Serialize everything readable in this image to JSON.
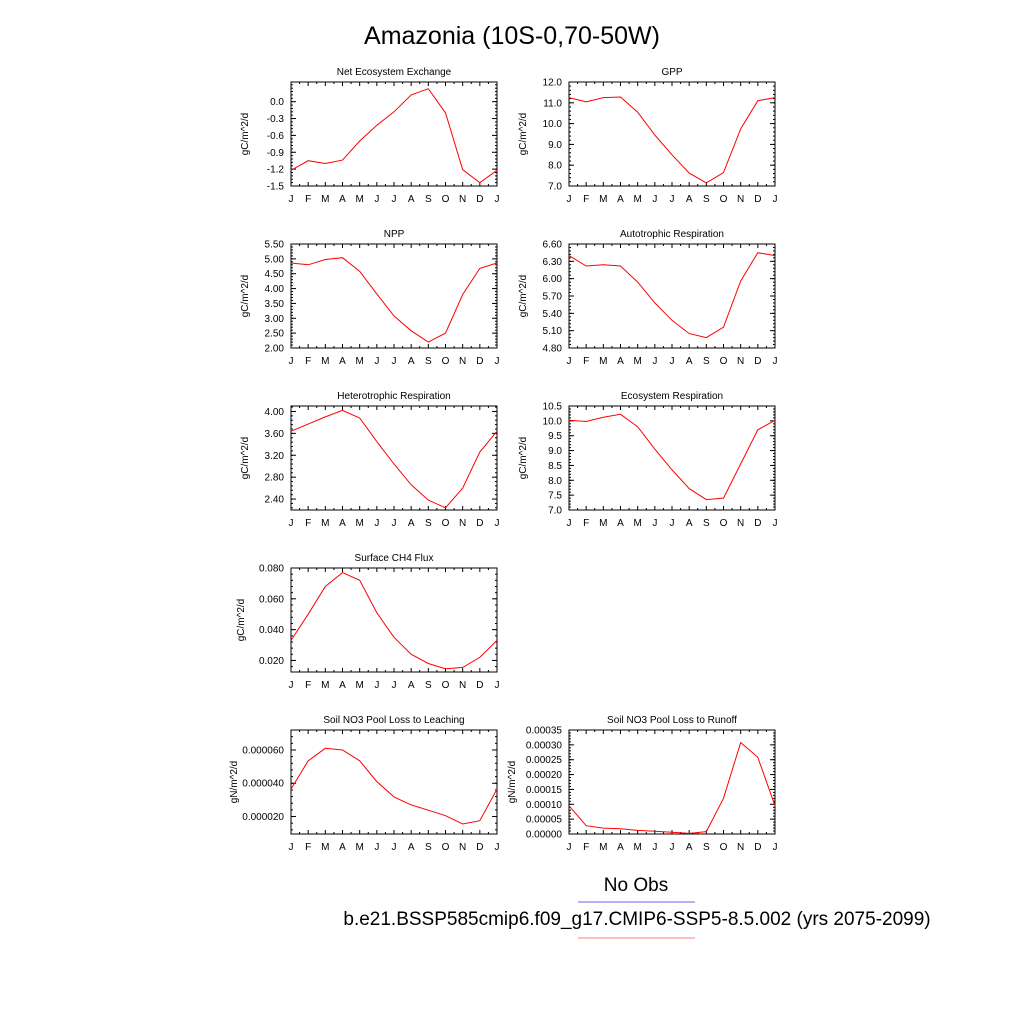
{
  "title": "Amazonia (10S-0,70-50W)",
  "legend": {
    "obs_label": "No Obs",
    "obs_color": "#6666ee",
    "model_label": "b.e21.BSSP585cmip6.f09_g17.CMIP6-SSP5-8.5.002 (yrs 2075-2099)",
    "model_color": "#ff8080"
  },
  "colors": {
    "series": "#ff0000",
    "axes": "#000000"
  },
  "months": [
    "J",
    "F",
    "M",
    "A",
    "M",
    "J",
    "J",
    "A",
    "S",
    "O",
    "N",
    "D",
    "J"
  ],
  "chart_data": [
    {
      "type": "line",
      "title": "Net Ecosystem Exchange",
      "ylabel": "gC/m^2/d",
      "ylim": [
        -1.5,
        0.35
      ],
      "yticks": [
        -1.5,
        -1.2,
        -0.9,
        -0.6,
        -0.3,
        0.0
      ],
      "ytick_labels": [
        "-1.5",
        "-1.2",
        "-0.9",
        "-0.6",
        "-0.3",
        "0.0"
      ],
      "values": [
        -1.22,
        -1.05,
        -1.1,
        -1.04,
        -0.7,
        -0.42,
        -0.18,
        0.12,
        0.23,
        -0.2,
        -1.21,
        -1.44,
        -1.22
      ]
    },
    {
      "type": "line",
      "title": "GPP",
      "ylabel": "gC/m^2/d",
      "ylim": [
        7.0,
        12.0
      ],
      "yticks": [
        7.0,
        8.0,
        9.0,
        10.0,
        11.0,
        12.0
      ],
      "ytick_labels": [
        "7.0",
        "8.0",
        "9.0",
        "10.0",
        "11.0",
        "12.0"
      ],
      "values": [
        11.25,
        11.05,
        11.25,
        11.28,
        10.55,
        9.45,
        8.5,
        7.62,
        7.15,
        7.65,
        9.75,
        11.1,
        11.25
      ]
    },
    {
      "type": "line",
      "title": "NPP",
      "ylabel": "gC/m^2/d",
      "ylim": [
        2.0,
        5.5
      ],
      "yticks": [
        2.0,
        2.5,
        3.0,
        3.5,
        4.0,
        4.5,
        5.0,
        5.5
      ],
      "ytick_labels": [
        "2.00",
        "2.50",
        "3.00",
        "3.50",
        "4.00",
        "4.50",
        "5.00",
        "5.50"
      ],
      "values": [
        4.86,
        4.8,
        4.98,
        5.04,
        4.58,
        3.82,
        3.08,
        2.58,
        2.2,
        2.5,
        3.8,
        4.68,
        4.86
      ]
    },
    {
      "type": "line",
      "title": "Autotrophic Respiration",
      "ylabel": "gC/m^2/d",
      "ylim": [
        4.8,
        6.6
      ],
      "yticks": [
        4.8,
        5.1,
        5.4,
        5.7,
        6.0,
        6.3,
        6.6
      ],
      "ytick_labels": [
        "4.80",
        "5.10",
        "5.40",
        "5.70",
        "6.00",
        "6.30",
        "6.60"
      ],
      "values": [
        6.4,
        6.22,
        6.24,
        6.22,
        5.94,
        5.58,
        5.28,
        5.05,
        4.98,
        5.16,
        5.96,
        6.45,
        6.4
      ]
    },
    {
      "type": "line",
      "title": "Heterotrophic Respiration",
      "ylabel": "gC/m^2/d",
      "ylim": [
        2.2,
        4.1
      ],
      "yticks": [
        2.4,
        2.8,
        3.2,
        3.6,
        4.0
      ],
      "ytick_labels": [
        "2.40",
        "2.80",
        "3.20",
        "3.60",
        "4.00"
      ],
      "values": [
        3.64,
        3.77,
        3.9,
        4.02,
        3.88,
        3.45,
        3.04,
        2.66,
        2.38,
        2.24,
        2.6,
        3.26,
        3.64
      ]
    },
    {
      "type": "line",
      "title": "Ecosystem Respiration",
      "ylabel": "gC/m^2/d",
      "ylim": [
        7.0,
        10.5
      ],
      "yticks": [
        7.0,
        7.5,
        8.0,
        8.5,
        9.0,
        9.5,
        10.0,
        10.5
      ],
      "ytick_labels": [
        "7.0",
        "7.5",
        "8.0",
        "8.5",
        "9.0",
        "9.5",
        "10.0",
        "10.5"
      ],
      "values": [
        10.02,
        9.98,
        10.12,
        10.22,
        9.8,
        9.05,
        8.35,
        7.72,
        7.35,
        7.4,
        8.55,
        9.7,
        10.02
      ]
    },
    {
      "type": "line",
      "title": "Surface CH4 Flux",
      "ylabel": "gC/m^2/d",
      "ylim": [
        0.0125,
        0.08
      ],
      "yticks": [
        0.02,
        0.04,
        0.06,
        0.08
      ],
      "ytick_labels": [
        "0.020",
        "0.040",
        "0.060",
        "0.080"
      ],
      "values": [
        0.033,
        0.05,
        0.068,
        0.077,
        0.072,
        0.051,
        0.035,
        0.024,
        0.018,
        0.0145,
        0.0155,
        0.022,
        0.033
      ]
    },
    {
      "type": "line",
      "title": "Soil NO3 Pool Loss to Leaching",
      "ylabel": "gN/m^2/d",
      "ylim": [
        9.5e-06,
        7.2e-05
      ],
      "yticks": [
        2e-05,
        4e-05,
        6e-05
      ],
      "ytick_labels": [
        "0.000020",
        "0.000040",
        "0.000060"
      ],
      "values": [
        3.65e-05,
        5.35e-05,
        6.1e-05,
        6e-05,
        5.35e-05,
        4.1e-05,
        3.18e-05,
        2.7e-05,
        2.38e-05,
        2.05e-05,
        1.55e-05,
        1.75e-05,
        3.65e-05
      ]
    },
    {
      "type": "line",
      "title": "Soil NO3 Pool Loss to Runoff",
      "ylabel": "gN/m^2/d",
      "ylim": [
        0.0,
        0.00035
      ],
      "yticks": [
        0.0,
        5e-05,
        0.0001,
        0.00015,
        0.0002,
        0.00025,
        0.0003,
        0.00035
      ],
      "ytick_labels": [
        "0.00000",
        "0.00005",
        "0.00010",
        "0.00015",
        "0.00020",
        "0.00025",
        "0.00030",
        "0.00035"
      ],
      "minor_y": true,
      "values": [
        9.5e-05,
        2.8e-05,
        2e-05,
        1.8e-05,
        1.2e-05,
        9e-06,
        6e-06,
        2e-06,
        8e-06,
        0.00012,
        0.000308,
        0.000258,
        9.5e-05
      ]
    }
  ]
}
